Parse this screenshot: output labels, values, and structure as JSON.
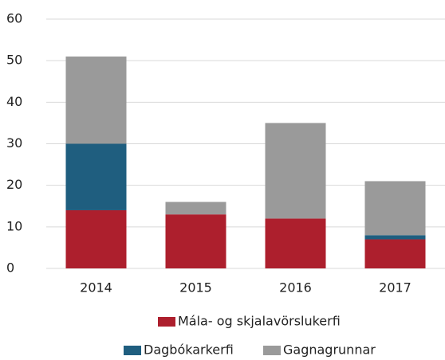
{
  "chart_data": {
    "type": "stacked_bar",
    "categories": [
      "2014",
      "2015",
      "2016",
      "2017"
    ],
    "series": [
      {
        "name": "Mála- og skjalavörslukerfi",
        "color": "#ad1f2d",
        "values": [
          14,
          13,
          12,
          7
        ]
      },
      {
        "name": "Dagbókarkerfi",
        "color": "#1f5e7f",
        "values": [
          16,
          0,
          0,
          1
        ]
      },
      {
        "name": "Gagnagrunnar",
        "color": "#9a9a9a",
        "values": [
          21,
          3,
          23,
          13
        ]
      }
    ],
    "ylim": [
      0,
      60
    ],
    "yticks": [
      0,
      10,
      20,
      30,
      40,
      50,
      60
    ],
    "grid": true,
    "legend": "bottom"
  }
}
